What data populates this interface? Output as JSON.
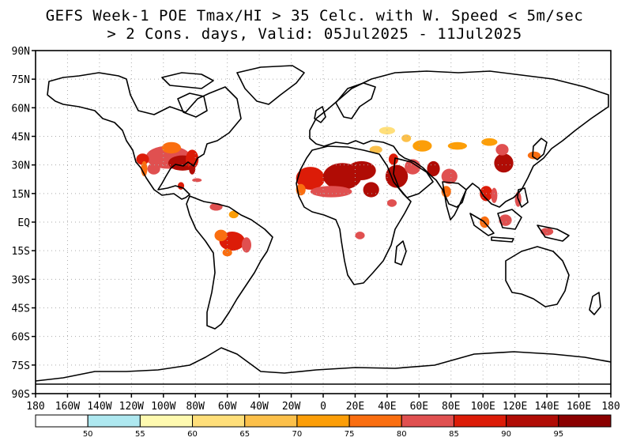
{
  "title": {
    "line1": "GEFS Week-1 POE Tmax/HI > 35 Celc. with W. Speed < 5m/sec",
    "line2": "> 2 Cons. days, Valid: 05Jul2025 - 11Jul2025"
  },
  "map": {
    "projection": "equirectangular",
    "lon_range": [
      -180,
      180
    ],
    "lat_range": [
      -90,
      90
    ],
    "grid": "dotted",
    "lat_ticks": [
      {
        "value": 90,
        "label": "90N"
      },
      {
        "value": 75,
        "label": "75N"
      },
      {
        "value": 60,
        "label": "60N"
      },
      {
        "value": 45,
        "label": "45N"
      },
      {
        "value": 30,
        "label": "30N"
      },
      {
        "value": 15,
        "label": "15N"
      },
      {
        "value": 0,
        "label": "EQ"
      },
      {
        "value": -15,
        "label": "15S"
      },
      {
        "value": -30,
        "label": "30S"
      },
      {
        "value": -45,
        "label": "45S"
      },
      {
        "value": -60,
        "label": "60S"
      },
      {
        "value": -75,
        "label": "75S"
      },
      {
        "value": -90,
        "label": "90S"
      }
    ],
    "lon_ticks": [
      {
        "value": -180,
        "label": "180"
      },
      {
        "value": -160,
        "label": "160W"
      },
      {
        "value": -140,
        "label": "140W"
      },
      {
        "value": -120,
        "label": "120W"
      },
      {
        "value": -100,
        "label": "100W"
      },
      {
        "value": -80,
        "label": "80W"
      },
      {
        "value": -60,
        "label": "60W"
      },
      {
        "value": -40,
        "label": "40W"
      },
      {
        "value": -20,
        "label": "20W"
      },
      {
        "value": 0,
        "label": "0"
      },
      {
        "value": 20,
        "label": "20E"
      },
      {
        "value": 40,
        "label": "40E"
      },
      {
        "value": 60,
        "label": "60E"
      },
      {
        "value": 80,
        "label": "80E"
      },
      {
        "value": 100,
        "label": "100E"
      },
      {
        "value": 120,
        "label": "120E"
      },
      {
        "value": 140,
        "label": "140E"
      },
      {
        "value": 160,
        "label": "160E"
      },
      {
        "value": 180,
        "label": "180"
      }
    ],
    "probability_regions": [
      {
        "name": "southern-us",
        "lon": -97,
        "lat": 34,
        "rlon": 14,
        "rlat": 6,
        "class": 85
      },
      {
        "name": "gulf-coast",
        "lon": -88,
        "lat": 31,
        "rlon": 9,
        "rlat": 4,
        "class": 95
      },
      {
        "name": "us-southeast",
        "lon": -82,
        "lat": 33,
        "rlon": 4,
        "rlat": 5,
        "class": 90
      },
      {
        "name": "florida",
        "lon": -82,
        "lat": 28,
        "rlon": 2,
        "rlat": 3,
        "class": 95
      },
      {
        "name": "us-plains-north",
        "lon": -95,
        "lat": 39,
        "rlon": 6,
        "rlat": 3,
        "class": 80
      },
      {
        "name": "us-southwest",
        "lon": -113,
        "lat": 33,
        "rlon": 4,
        "rlat": 3,
        "class": 90
      },
      {
        "name": "baja-california",
        "lon": -112,
        "lat": 28,
        "rlon": 2,
        "rlat": 4,
        "class": 80
      },
      {
        "name": "mexico-north",
        "lon": -106,
        "lat": 28,
        "rlon": 4,
        "rlat": 3,
        "class": 85
      },
      {
        "name": "yucatan",
        "lon": -89,
        "lat": 19,
        "rlon": 2,
        "rlat": 2,
        "class": 90
      },
      {
        "name": "cuba",
        "lon": -79,
        "lat": 22,
        "rlon": 3,
        "rlat": 1,
        "class": 85
      },
      {
        "name": "venezuela",
        "lon": -67,
        "lat": 8,
        "rlon": 4,
        "rlat": 2,
        "class": 85
      },
      {
        "name": "guianas",
        "lon": -56,
        "lat": 4,
        "rlon": 3,
        "rlat": 2,
        "class": 75
      },
      {
        "name": "amazon-central",
        "lon": -57,
        "lat": -10,
        "rlon": 8,
        "rlat": 5,
        "class": 90
      },
      {
        "name": "amazon-west",
        "lon": -64,
        "lat": -7,
        "rlon": 4,
        "rlat": 3,
        "class": 80
      },
      {
        "name": "brazil-cerrado",
        "lon": -48,
        "lat": -12,
        "rlon": 3,
        "rlat": 4,
        "class": 85
      },
      {
        "name": "bolivia",
        "lon": -60,
        "lat": -16,
        "rlon": 3,
        "rlat": 2,
        "class": 80
      },
      {
        "name": "west-sahara",
        "lon": -8,
        "lat": 23,
        "rlon": 9,
        "rlat": 6,
        "class": 90
      },
      {
        "name": "central-sahara",
        "lon": 12,
        "lat": 24,
        "rlon": 12,
        "rlat": 7,
        "class": 95
      },
      {
        "name": "libya-egypt",
        "lon": 24,
        "lat": 27,
        "rlon": 9,
        "rlat": 5,
        "class": 95
      },
      {
        "name": "sahel",
        "lon": 5,
        "lat": 16,
        "rlon": 13,
        "rlat": 3,
        "class": 85
      },
      {
        "name": "mauritania-coast",
        "lon": -14,
        "lat": 17,
        "rlon": 3,
        "rlat": 3,
        "class": 80
      },
      {
        "name": "sudan",
        "lon": 30,
        "lat": 17,
        "rlon": 5,
        "rlat": 4,
        "class": 95
      },
      {
        "name": "horn-of-africa",
        "lon": 43,
        "lat": 10,
        "rlon": 3,
        "rlat": 2,
        "class": 85
      },
      {
        "name": "central-africa-south",
        "lon": 23,
        "lat": -7,
        "rlon": 3,
        "rlat": 2,
        "class": 85
      },
      {
        "name": "arabian-peninsula",
        "lon": 46,
        "lat": 24,
        "rlon": 7,
        "rlat": 6,
        "class": 95
      },
      {
        "name": "iraq",
        "lon": 44,
        "lat": 33,
        "rlon": 3,
        "rlat": 3,
        "class": 90
      },
      {
        "name": "iran",
        "lon": 56,
        "lat": 29,
        "rlon": 5,
        "rlat": 4,
        "class": 85
      },
      {
        "name": "pakistan",
        "lon": 69,
        "lat": 28,
        "rlon": 4,
        "rlat": 4,
        "class": 95
      },
      {
        "name": "central-asia",
        "lon": 62,
        "lat": 40,
        "rlon": 6,
        "rlat": 3,
        "class": 75
      },
      {
        "name": "caspian",
        "lon": 52,
        "lat": 44,
        "rlon": 3,
        "rlat": 2,
        "class": 70
      },
      {
        "name": "turkey",
        "lon": 33,
        "lat": 38,
        "rlon": 4,
        "rlat": 2,
        "class": 70
      },
      {
        "name": "ukraine-russia-south",
        "lon": 40,
        "lat": 48,
        "rlon": 5,
        "rlat": 2,
        "class": 65
      },
      {
        "name": "india-north",
        "lon": 79,
        "lat": 24,
        "rlon": 5,
        "rlat": 4,
        "class": 85
      },
      {
        "name": "india-central",
        "lon": 77,
        "lat": 16,
        "rlon": 3,
        "rlat": 3,
        "class": 80
      },
      {
        "name": "china-east",
        "lon": 113,
        "lat": 31,
        "rlon": 6,
        "rlat": 5,
        "class": 95
      },
      {
        "name": "china-north",
        "lon": 112,
        "lat": 38,
        "rlon": 4,
        "rlat": 3,
        "class": 85
      },
      {
        "name": "tarim-basin",
        "lon": 84,
        "lat": 40,
        "rlon": 6,
        "rlat": 2,
        "class": 75
      },
      {
        "name": "mongolia",
        "lon": 104,
        "lat": 42,
        "rlon": 5,
        "rlat": 2,
        "class": 75
      },
      {
        "name": "korea-japan",
        "lon": 132,
        "lat": 35,
        "rlon": 4,
        "rlat": 2,
        "class": 80
      },
      {
        "name": "indochina",
        "lon": 102,
        "lat": 15,
        "rlon": 4,
        "rlat": 4,
        "class": 90
      },
      {
        "name": "vietnam",
        "lon": 107,
        "lat": 14,
        "rlon": 2,
        "rlat": 4,
        "class": 85
      },
      {
        "name": "philippines",
        "lon": 122,
        "lat": 12,
        "rlon": 2,
        "rlat": 4,
        "class": 85
      },
      {
        "name": "borneo",
        "lon": 114,
        "lat": 1,
        "rlon": 4,
        "rlat": 3,
        "class": 85
      },
      {
        "name": "sumatra",
        "lon": 101,
        "lat": 0,
        "rlon": 3,
        "rlat": 3,
        "class": 80
      },
      {
        "name": "new-guinea",
        "lon": 140,
        "lat": -5,
        "rlon": 4,
        "rlat": 2,
        "class": 85
      }
    ]
  },
  "legend": {
    "colors": [
      "#ffffff",
      "#aee8f0",
      "#fffab0",
      "#ffdf7a",
      "#fcc04a",
      "#fc9e08",
      "#fa6e10",
      "#e05050",
      "#dc1c08",
      "#b00c05",
      "#8a0000"
    ],
    "labels": [
      "50",
      "55",
      "60",
      "65",
      "70",
      "75",
      "80",
      "85",
      "90",
      "95"
    ],
    "class_colors": {
      "65": "#ffdf7a",
      "70": "#fcc04a",
      "75": "#fc9e08",
      "80": "#fa6e10",
      "85": "#e05050",
      "90": "#dc1c08",
      "95": "#b00c05"
    },
    "ink_color": "#000000",
    "grid_color": "#aaaaaa"
  }
}
